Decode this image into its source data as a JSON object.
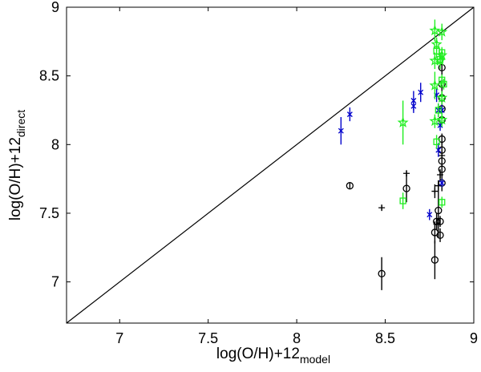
{
  "chart_data": {
    "type": "scatter",
    "title": "",
    "xlabel": {
      "main": "log(O/H)+12",
      "sub": "model"
    },
    "ylabel": {
      "main": "log(O/H)+12",
      "sub": "direct"
    },
    "xlim": [
      6.7,
      9.0
    ],
    "ylim": [
      6.7,
      9.0
    ],
    "xticks": [
      7,
      7.5,
      8,
      8.5,
      9
    ],
    "yticks": [
      7,
      7.5,
      8,
      8.5,
      9
    ],
    "xtick_labels": [
      "7",
      "7.5",
      "8",
      "8.5",
      "9"
    ],
    "ytick_labels": [
      "7",
      "7.5",
      "8",
      "8.5",
      "9"
    ],
    "grid": false,
    "legend": "none",
    "reference_line": {
      "x": [
        6.7,
        9.0
      ],
      "y": [
        6.7,
        9.0
      ],
      "color": "#000000"
    },
    "series": [
      {
        "marker": "circle",
        "color": "#000000",
        "points": [
          {
            "x": 8.3,
            "y": 7.7,
            "err": 0.02
          },
          {
            "x": 8.48,
            "y": 7.06,
            "err": 0.12
          },
          {
            "x": 8.62,
            "y": 7.68,
            "err": 0.1
          },
          {
            "x": 8.78,
            "y": 7.16,
            "err": 0.14
          },
          {
            "x": 8.78,
            "y": 7.36,
            "err": 0.08
          },
          {
            "x": 8.79,
            "y": 7.44,
            "err": 0.06
          },
          {
            "x": 8.8,
            "y": 7.52,
            "err": 0.2
          },
          {
            "x": 8.81,
            "y": 7.34,
            "err": 0.05
          },
          {
            "x": 8.81,
            "y": 7.44,
            "err": 0.04
          },
          {
            "x": 8.82,
            "y": 7.72,
            "err": 0.06
          },
          {
            "x": 8.82,
            "y": 7.82,
            "err": 0.05
          },
          {
            "x": 8.82,
            "y": 7.88,
            "err": 0.05
          },
          {
            "x": 8.82,
            "y": 7.96,
            "err": 0.06
          },
          {
            "x": 8.82,
            "y": 8.04,
            "err": 0.04
          },
          {
            "x": 8.82,
            "y": 8.18,
            "err": 0.04
          },
          {
            "x": 8.82,
            "y": 8.26,
            "err": 0.04
          },
          {
            "x": 8.82,
            "y": 8.34,
            "err": 0.05
          },
          {
            "x": 8.82,
            "y": 8.44,
            "err": 0.05
          },
          {
            "x": 8.82,
            "y": 8.56,
            "err": 0.06
          }
        ]
      },
      {
        "marker": "plus",
        "color": "#000000",
        "points": [
          {
            "x": 8.48,
            "y": 7.54,
            "err": 0.02
          },
          {
            "x": 8.62,
            "y": 7.79,
            "err": 0.02
          },
          {
            "x": 8.78,
            "y": 7.66,
            "err": 0.05
          },
          {
            "x": 8.79,
            "y": 7.42,
            "err": 0.04
          },
          {
            "x": 8.8,
            "y": 7.7,
            "err": 0.04
          },
          {
            "x": 8.81,
            "y": 7.78,
            "err": 0.04
          },
          {
            "x": 8.82,
            "y": 7.92,
            "err": 0.03
          }
        ]
      },
      {
        "marker": "x",
        "color": "#0000cc",
        "points": [
          {
            "x": 8.25,
            "y": 8.1,
            "err": 0.1
          },
          {
            "x": 8.3,
            "y": 8.22,
            "err": 0.05
          },
          {
            "x": 8.66,
            "y": 8.32,
            "err": 0.07
          },
          {
            "x": 8.66,
            "y": 8.28,
            "err": 0.05
          },
          {
            "x": 8.7,
            "y": 8.38,
            "err": 0.07
          },
          {
            "x": 8.75,
            "y": 7.49,
            "err": 0.04
          },
          {
            "x": 8.79,
            "y": 8.36,
            "err": 0.05
          },
          {
            "x": 8.8,
            "y": 8.25,
            "err": 0.05
          },
          {
            "x": 8.8,
            "y": 7.96,
            "err": 0.05
          },
          {
            "x": 8.81,
            "y": 8.14,
            "err": 0.04
          },
          {
            "x": 8.82,
            "y": 8.25,
            "err": 0.04
          },
          {
            "x": 8.82,
            "y": 7.72,
            "err": 0.03
          }
        ]
      },
      {
        "marker": "star",
        "color": "#22ee22",
        "points": [
          {
            "x": 8.6,
            "y": 8.16,
            "err": 0.16
          },
          {
            "x": 8.78,
            "y": 8.83,
            "err": 0.08
          },
          {
            "x": 8.78,
            "y": 8.61,
            "err": 0.06
          },
          {
            "x": 8.78,
            "y": 8.43,
            "err": 0.1
          },
          {
            "x": 8.78,
            "y": 8.17,
            "err": 0.05
          },
          {
            "x": 8.79,
            "y": 8.73,
            "err": 0.05
          },
          {
            "x": 8.81,
            "y": 8.61,
            "err": 0.06
          },
          {
            "x": 8.82,
            "y": 8.82,
            "err": 0.06
          },
          {
            "x": 8.82,
            "y": 8.65,
            "err": 0.05
          },
          {
            "x": 8.82,
            "y": 8.34,
            "err": 0.05
          },
          {
            "x": 8.82,
            "y": 8.18,
            "err": 0.05
          }
        ]
      },
      {
        "marker": "square",
        "color": "#22ee22",
        "points": [
          {
            "x": 8.6,
            "y": 7.59,
            "err": 0.06
          },
          {
            "x": 8.79,
            "y": 8.68,
            "err": 0.05
          },
          {
            "x": 8.79,
            "y": 8.02,
            "err": 0.05
          },
          {
            "x": 8.8,
            "y": 8.25,
            "err": 0.05
          },
          {
            "x": 8.81,
            "y": 8.62,
            "err": 0.04
          },
          {
            "x": 8.82,
            "y": 8.47,
            "err": 0.04
          },
          {
            "x": 8.82,
            "y": 8.67,
            "err": 0.04
          },
          {
            "x": 8.82,
            "y": 7.58,
            "err": 0.04
          },
          {
            "x": 8.83,
            "y": 8.44,
            "err": 0.04
          }
        ]
      }
    ]
  }
}
